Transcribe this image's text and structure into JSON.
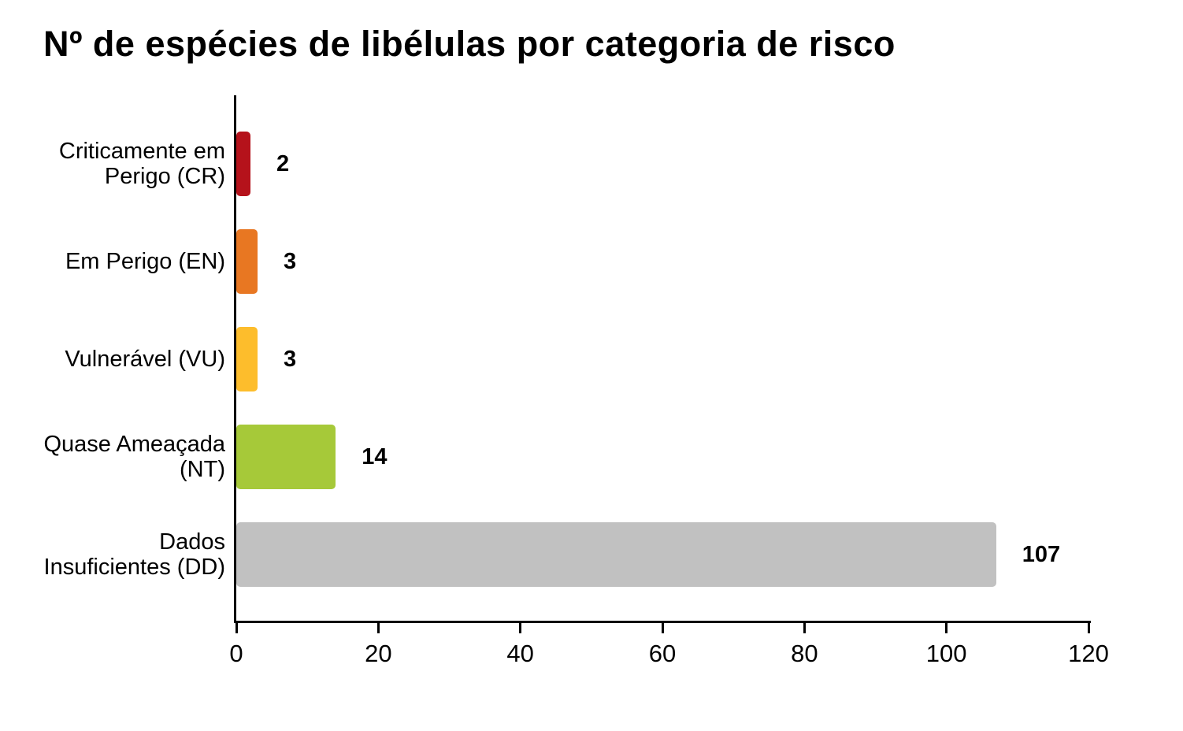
{
  "chart": {
    "title": "Nº de espécies de libélulas por categoria de risco"
  },
  "chart_data": {
    "type": "bar",
    "orientation": "horizontal",
    "title": "Nº de espécies de libélulas por categoria de risco",
    "categories": [
      "Criticamente em\nPerigo (CR)",
      "Em Perigo (EN)",
      "Vulnerável (VU)",
      "Quase Ameaçada\n(NT)",
      "Dados\nInsuficientes (DD)"
    ],
    "values": [
      2,
      3,
      3,
      14,
      107
    ],
    "value_labels": [
      "2",
      "3",
      "3",
      "14",
      "107"
    ],
    "bar_colors": [
      "#b5121b",
      "#e87722",
      "#fdbd2c",
      "#a6c939",
      "#c1c1c1"
    ],
    "xlabel": "",
    "ylabel": "",
    "xlim": [
      0,
      120
    ],
    "xticks": [
      0,
      20,
      40,
      60,
      80,
      100,
      120
    ],
    "grid": false,
    "legend": false,
    "background": "#ffffff",
    "text_color": "#000000",
    "axis_color": "#000000"
  }
}
